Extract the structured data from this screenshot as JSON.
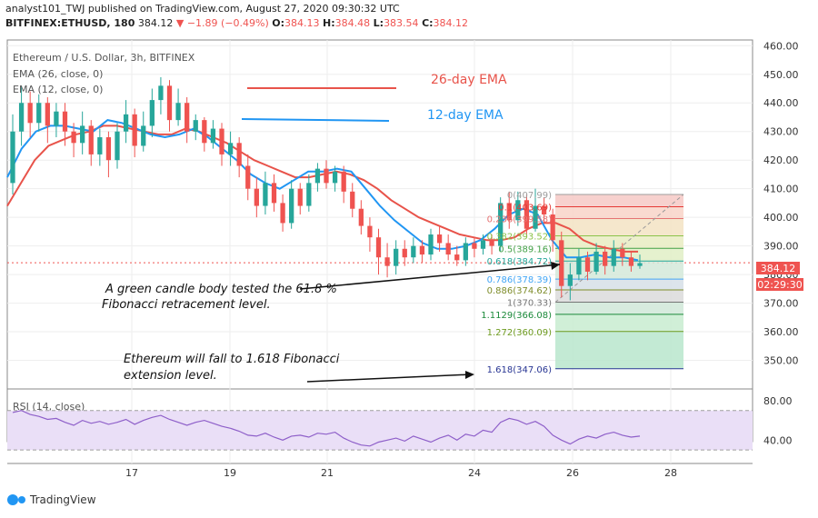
{
  "header": {
    "publish_line": "analyst101_TWJ published on TradingView.com, August 27, 2020 09:30:32 UTC",
    "symbol": "BITFINEX:ETHUSD, 180",
    "last": "384.12",
    "change": "▼ −1.89 (−0.49%)",
    "o_label": "O:",
    "o_value": "384.13",
    "h_label": "H:",
    "h_value": "384.48",
    "l_label": "L:",
    "l_value": "383.54",
    "c_label": "C:",
    "c_value": "384.12"
  },
  "legend": {
    "title": "Ethereum / U.S. Dollar, 3h, BITFINEX",
    "ema26": "EMA (26, close, 0)",
    "ema12": "EMA (12, close, 0)",
    "ema26_label": "26-day EMA",
    "ema12_label": "12-day EMA"
  },
  "annotations": {
    "a1_line1": "A green candle body tested the 61.8 %",
    "a1_line2": "Fibonacci retracement level.",
    "a2_line1": "Ethereum will fall to 1.618 Fibonacci",
    "a2_line2": "extension level."
  },
  "price_badge": "384.12",
  "time_badge": "02:29:30",
  "rsi": {
    "label": "RSI (14, close)"
  },
  "footer": {
    "brand": "TradingView"
  },
  "colors": {
    "up": "#26a69a",
    "down": "#ef5350",
    "ema26": "#e8534a",
    "ema12": "#2196f3",
    "rsi": "#8e5fc9",
    "rsi_band": "#eadff7",
    "fib_top": "#f28b85",
    "fib_bottom": "#5fbf8e"
  },
  "chart_data": {
    "type": "candlestick",
    "price_axis": {
      "ylim": [
        340,
        462
      ],
      "ticks": [
        350,
        360,
        370,
        380,
        390,
        400,
        410,
        420,
        430,
        440,
        450,
        460
      ]
    },
    "x_ticks": [
      "17",
      "19",
      "21",
      "24",
      "26",
      "28"
    ],
    "ema26_values": [
      404,
      412,
      420,
      425,
      427,
      429,
      430,
      432,
      432,
      431,
      430,
      429,
      429,
      431,
      430,
      428,
      426,
      423,
      420,
      418,
      416,
      414,
      414,
      415,
      416,
      415,
      413,
      410,
      406,
      403,
      400,
      398,
      396,
      394,
      393,
      392,
      392,
      393,
      396,
      398,
      398,
      396,
      392,
      390,
      389,
      388,
      388
    ],
    "ema12_values": [
      414,
      424,
      430,
      432,
      432,
      431,
      430,
      434,
      433,
      431,
      429,
      428,
      429,
      431,
      428,
      424,
      420,
      415,
      412,
      410,
      413,
      416,
      416,
      417,
      416,
      410,
      404,
      399,
      395,
      391,
      389,
      389,
      390,
      392,
      396,
      401,
      403,
      401,
      392,
      386,
      386,
      387,
      386,
      386,
      385
    ],
    "candles": [
      {
        "o": 412,
        "c": 430,
        "h": 436,
        "l": 408
      },
      {
        "o": 430,
        "c": 440,
        "h": 446,
        "l": 425
      },
      {
        "o": 440,
        "c": 433,
        "h": 444,
        "l": 428
      },
      {
        "o": 433,
        "c": 440,
        "h": 443,
        "l": 430
      },
      {
        "o": 440,
        "c": 432,
        "h": 442,
        "l": 426
      },
      {
        "o": 432,
        "c": 437,
        "h": 440,
        "l": 428
      },
      {
        "o": 437,
        "c": 430,
        "h": 440,
        "l": 425
      },
      {
        "o": 430,
        "c": 426,
        "h": 433,
        "l": 421
      },
      {
        "o": 426,
        "c": 432,
        "h": 437,
        "l": 422
      },
      {
        "o": 432,
        "c": 422,
        "h": 434,
        "l": 418
      },
      {
        "o": 422,
        "c": 428,
        "h": 431,
        "l": 418
      },
      {
        "o": 428,
        "c": 420,
        "h": 430,
        "l": 414
      },
      {
        "o": 420,
        "c": 430,
        "h": 433,
        "l": 417
      },
      {
        "o": 430,
        "c": 436,
        "h": 441,
        "l": 426
      },
      {
        "o": 436,
        "c": 425,
        "h": 438,
        "l": 421
      },
      {
        "o": 425,
        "c": 432,
        "h": 437,
        "l": 423
      },
      {
        "o": 432,
        "c": 441,
        "h": 445,
        "l": 428
      },
      {
        "o": 441,
        "c": 446,
        "h": 449,
        "l": 436
      },
      {
        "o": 446,
        "c": 434,
        "h": 448,
        "l": 430
      },
      {
        "o": 434,
        "c": 440,
        "h": 445,
        "l": 432
      },
      {
        "o": 440,
        "c": 430,
        "h": 442,
        "l": 426
      },
      {
        "o": 430,
        "c": 434,
        "h": 436,
        "l": 427
      },
      {
        "o": 434,
        "c": 426,
        "h": 435,
        "l": 423
      },
      {
        "o": 426,
        "c": 431,
        "h": 434,
        "l": 424
      },
      {
        "o": 431,
        "c": 422,
        "h": 433,
        "l": 418
      },
      {
        "o": 422,
        "c": 426,
        "h": 430,
        "l": 418
      },
      {
        "o": 426,
        "c": 418,
        "h": 428,
        "l": 414
      },
      {
        "o": 418,
        "c": 410,
        "h": 422,
        "l": 406
      },
      {
        "o": 410,
        "c": 404,
        "h": 414,
        "l": 400
      },
      {
        "o": 404,
        "c": 412,
        "h": 416,
        "l": 401
      },
      {
        "o": 412,
        "c": 405,
        "h": 415,
        "l": 402
      },
      {
        "o": 405,
        "c": 398,
        "h": 408,
        "l": 395
      },
      {
        "o": 398,
        "c": 410,
        "h": 413,
        "l": 396
      },
      {
        "o": 410,
        "c": 404,
        "h": 412,
        "l": 401
      },
      {
        "o": 404,
        "c": 412,
        "h": 415,
        "l": 402
      },
      {
        "o": 412,
        "c": 417,
        "h": 419,
        "l": 409
      },
      {
        "o": 417,
        "c": 412,
        "h": 420,
        "l": 410
      },
      {
        "o": 412,
        "c": 416,
        "h": 418,
        "l": 409
      },
      {
        "o": 416,
        "c": 409,
        "h": 418,
        "l": 405
      },
      {
        "o": 409,
        "c": 403,
        "h": 412,
        "l": 400
      },
      {
        "o": 403,
        "c": 397,
        "h": 406,
        "l": 394
      },
      {
        "o": 397,
        "c": 393,
        "h": 400,
        "l": 388
      },
      {
        "o": 393,
        "c": 386,
        "h": 396,
        "l": 380
      },
      {
        "o": 386,
        "c": 383,
        "h": 391,
        "l": 379
      },
      {
        "o": 383,
        "c": 389,
        "h": 392,
        "l": 380
      },
      {
        "o": 389,
        "c": 386,
        "h": 392,
        "l": 383
      },
      {
        "o": 386,
        "c": 390,
        "h": 393,
        "l": 384
      },
      {
        "o": 390,
        "c": 387,
        "h": 392,
        "l": 384
      },
      {
        "o": 387,
        "c": 394,
        "h": 396,
        "l": 385
      },
      {
        "o": 394,
        "c": 391,
        "h": 397,
        "l": 388
      },
      {
        "o": 391,
        "c": 387,
        "h": 394,
        "l": 385
      },
      {
        "o": 387,
        "c": 385,
        "h": 390,
        "l": 383
      },
      {
        "o": 385,
        "c": 391,
        "h": 393,
        "l": 383
      },
      {
        "o": 391,
        "c": 389,
        "h": 393,
        "l": 386
      },
      {
        "o": 389,
        "c": 392,
        "h": 394,
        "l": 387
      },
      {
        "o": 392,
        "c": 390,
        "h": 394,
        "l": 387
      },
      {
        "o": 390,
        "c": 405,
        "h": 407,
        "l": 388
      },
      {
        "o": 405,
        "c": 399,
        "h": 409,
        "l": 396
      },
      {
        "o": 399,
        "c": 406,
        "h": 409,
        "l": 397
      },
      {
        "o": 406,
        "c": 396,
        "h": 408,
        "l": 393
      },
      {
        "o": 396,
        "c": 404,
        "h": 410,
        "l": 395
      },
      {
        "o": 404,
        "c": 401,
        "h": 407,
        "l": 398
      },
      {
        "o": 401,
        "c": 392,
        "h": 403,
        "l": 388
      },
      {
        "o": 392,
        "c": 376,
        "h": 395,
        "l": 372
      },
      {
        "o": 376,
        "c": 380,
        "h": 384,
        "l": 371
      },
      {
        "o": 380,
        "c": 386,
        "h": 389,
        "l": 378
      },
      {
        "o": 386,
        "c": 381,
        "h": 388,
        "l": 378
      },
      {
        "o": 381,
        "c": 388,
        "h": 391,
        "l": 380
      },
      {
        "o": 388,
        "c": 383,
        "h": 390,
        "l": 380
      },
      {
        "o": 383,
        "c": 389,
        "h": 392,
        "l": 381
      },
      {
        "o": 389,
        "c": 386,
        "h": 391,
        "l": 383
      },
      {
        "o": 386,
        "c": 383,
        "h": 388,
        "l": 381
      },
      {
        "o": 383,
        "c": 384,
        "h": 387,
        "l": 382
      }
    ],
    "fibonacci": {
      "levels": [
        {
          "ratio": "0",
          "value": 407.99,
          "color": "#9e9e9e"
        },
        {
          "ratio": "0.1",
          "value": 403.69,
          "color": "#e53935"
        },
        {
          "ratio": "0.236",
          "value": 399.58,
          "color": "#e57373"
        },
        {
          "ratio": "0.382",
          "value": 393.52,
          "color": "#8bc34a"
        },
        {
          "ratio": "0.5",
          "value": 389.16,
          "color": "#43a047"
        },
        {
          "ratio": "0.618",
          "value": 384.72,
          "color": "#26a69a"
        },
        {
          "ratio": "0.786",
          "value": 378.39,
          "color": "#42a5f5"
        },
        {
          "ratio": "0.886",
          "value": 374.62,
          "color": "#7e8c2a"
        },
        {
          "ratio": "1",
          "value": 370.33,
          "color": "#757575"
        },
        {
          "ratio": "1.1129",
          "value": 366.08,
          "color": "#1b8a3a"
        },
        {
          "ratio": "1.272",
          "value": 360.09,
          "color": "#6d9a1e"
        },
        {
          "ratio": "1.618",
          "value": 347.06,
          "color": "#283593"
        }
      ],
      "labels": [
        "0(407.99)",
        "0.1(403.69)",
        "0.236(399.58)",
        "0.382(393.52)",
        "0.5(389.16)",
        "0.618(384.72)",
        "0.786(378.39)",
        "0.886(374.62)",
        "1(370.33)",
        "1.1129(366.08)",
        "1.272(360.09)",
        "1.618(347.06)"
      ]
    },
    "rsi": {
      "ylim": [
        20,
        90
      ],
      "ticks": [
        40,
        80
      ],
      "band": [
        30,
        70
      ],
      "values": [
        68,
        70,
        66,
        64,
        61,
        62,
        58,
        55,
        60,
        57,
        59,
        56,
        58,
        61,
        56,
        60,
        63,
        65,
        61,
        58,
        55,
        58,
        60,
        57,
        54,
        52,
        49,
        45,
        44,
        47,
        43,
        40,
        44,
        45,
        43,
        47,
        46,
        48,
        42,
        38,
        35,
        34,
        38,
        40,
        42,
        39,
        44,
        41,
        38,
        42,
        45,
        40,
        46,
        44,
        50,
        48,
        58,
        62,
        60,
        56,
        59,
        54,
        45,
        40,
        36,
        41,
        44,
        42,
        46,
        48,
        45,
        43,
        44
      ]
    }
  }
}
